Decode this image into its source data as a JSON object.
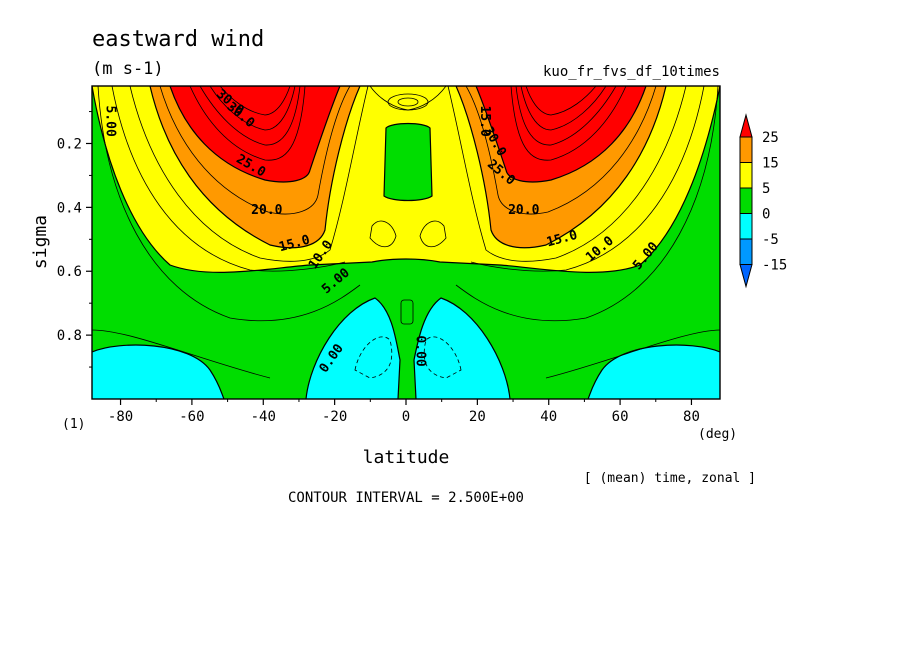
{
  "chart_data": {
    "type": "contour",
    "title": "eastward wind",
    "units": "(m s-1)",
    "run_name": "kuo_fr_fvs_df_10times",
    "xlabel": "latitude",
    "x_unit": "(deg)",
    "ylabel": "sigma",
    "y_unit": "(1)",
    "subtitle": "[ (mean) time, zonal ]",
    "contour_interval_text": "CONTOUR INTERVAL = 2.500E+00",
    "xlim": [
      -88,
      88
    ],
    "ylim": [
      1.0,
      0.02
    ],
    "y_inverted": true,
    "x_ticks": [
      -80,
      -60,
      -40,
      -20,
      0,
      20,
      40,
      60,
      80
    ],
    "y_ticks": [
      0.2,
      0.4,
      0.6,
      0.8
    ],
    "colorbar": {
      "levels": [
        "25",
        "15",
        "5",
        "0",
        "-5",
        "-15"
      ],
      "colors": [
        "#ff0000",
        "#ff9900",
        "#ffff00",
        "#00dd00",
        "#00ffff",
        "#0099ff"
      ],
      "top_triangle_color": "#ff0000",
      "bottom_triangle_color": "#0066ff"
    },
    "contour_labels": [
      {
        "text": "5.00",
        "lat": -84,
        "sigma": 0.13,
        "rot": 90
      },
      {
        "text": "30.0",
        "lat": -50,
        "sigma": 0.08,
        "rot": 40
      },
      {
        "text": "30.0",
        "lat": -47,
        "sigma": 0.12,
        "rot": 40
      },
      {
        "text": "25.0",
        "lat": -44,
        "sigma": 0.28,
        "rot": 30
      },
      {
        "text": "20.0",
        "lat": -39,
        "sigma": 0.42,
        "rot": 0
      },
      {
        "text": "15.0",
        "lat": -31,
        "sigma": 0.525,
        "rot": -15
      },
      {
        "text": "10.0",
        "lat": -23,
        "sigma": 0.555,
        "rot": -55
      },
      {
        "text": "5.00",
        "lat": -19,
        "sigma": 0.64,
        "rot": -40
      },
      {
        "text": "0.00",
        "lat": -20,
        "sigma": 0.88,
        "rot": -55
      },
      {
        "text": "0.00",
        "lat": 3,
        "sigma": 0.85,
        "rot": 90
      },
      {
        "text": "15.0",
        "lat": 21,
        "sigma": 0.13,
        "rot": 90
      },
      {
        "text": "30.0",
        "lat": 24,
        "sigma": 0.2,
        "rot": 60
      },
      {
        "text": "25.0",
        "lat": 26,
        "sigma": 0.3,
        "rot": 40
      },
      {
        "text": "20.0",
        "lat": 33,
        "sigma": 0.42,
        "rot": 0
      },
      {
        "text": "15.0",
        "lat": 44,
        "sigma": 0.51,
        "rot": -15
      },
      {
        "text": "10.0",
        "lat": 55,
        "sigma": 0.54,
        "rot": -40
      },
      {
        "text": "5.00",
        "lat": 68,
        "sigma": 0.56,
        "rot": -50
      }
    ]
  }
}
